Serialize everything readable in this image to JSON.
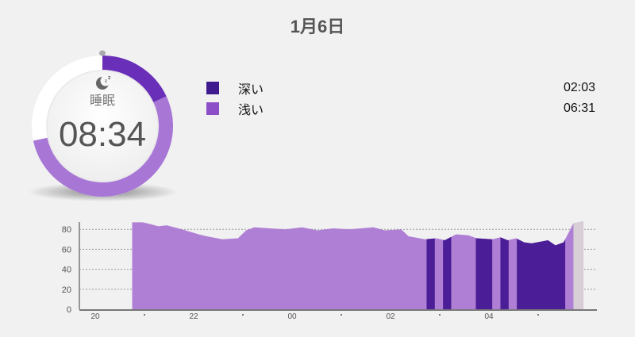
{
  "header": {
    "title": "1月6日"
  },
  "summary": {
    "icon": "moon-zz-icon",
    "label": "睡眠",
    "total": "08:34",
    "deep_fraction": 0.24,
    "light_fraction": 0.76
  },
  "legend": [
    {
      "name": "深い",
      "value": "02:03",
      "color": "#3f1a8f"
    },
    {
      "name": "浅い",
      "value": "06:31",
      "color": "#8c4fc8"
    }
  ],
  "colors": {
    "deep": "#4b1d96",
    "light": "#ae7fd4",
    "awake": "#d8cfd6",
    "ring_deep": "#6a2fb8",
    "ring_light": "#a877d6"
  },
  "chart_data": {
    "type": "area",
    "yticks": [
      "0",
      "20",
      "40",
      "60",
      "80"
    ],
    "ylim": [
      0,
      90
    ],
    "xticks": [
      "20",
      "22",
      "00",
      "02",
      "04"
    ],
    "xlim": [
      "19:40",
      "06:20"
    ],
    "grid": "dotted-horizontal",
    "profile": [
      [
        "20:45",
        87
      ],
      [
        "20:58",
        87
      ],
      [
        "21:08",
        85
      ],
      [
        "21:17",
        83
      ],
      [
        "21:27",
        84
      ],
      [
        "21:46",
        80
      ],
      [
        "22:06",
        75
      ],
      [
        "22:16",
        73
      ],
      [
        "22:35",
        70
      ],
      [
        "22:54",
        71
      ],
      [
        "23:04",
        79
      ],
      [
        "23:14",
        82
      ],
      [
        "23:33",
        81
      ],
      [
        "23:52",
        80
      ],
      [
        "00:12",
        82
      ],
      [
        "00:31",
        79
      ],
      [
        "00:50",
        81
      ],
      [
        "01:10",
        80
      ],
      [
        "01:39",
        82
      ],
      [
        "01:53",
        79
      ],
      [
        "02:13",
        80
      ],
      [
        "02:22",
        73
      ],
      [
        "02:42",
        70
      ],
      [
        "02:56",
        71
      ],
      [
        "03:06",
        69
      ],
      [
        "03:20",
        75
      ],
      [
        "03:35",
        74
      ],
      [
        "03:45",
        71
      ],
      [
        "04:04",
        70
      ],
      [
        "04:14",
        72
      ],
      [
        "04:23",
        69
      ],
      [
        "04:33",
        71
      ],
      [
        "04:43",
        67
      ],
      [
        "04:52",
        66
      ],
      [
        "05:12",
        69
      ],
      [
        "05:21",
        64
      ],
      [
        "05:31",
        67
      ],
      [
        "05:43",
        86
      ],
      [
        "05:55",
        88
      ]
    ],
    "deep_periods": [
      [
        "02:44",
        "02:54"
      ],
      [
        "03:04",
        "03:14"
      ],
      [
        "03:44",
        "04:04"
      ],
      [
        "04:14",
        "04:24"
      ],
      [
        "04:34",
        "05:33"
      ]
    ],
    "awake_periods": [
      [
        "05:43",
        "05:55"
      ]
    ]
  }
}
